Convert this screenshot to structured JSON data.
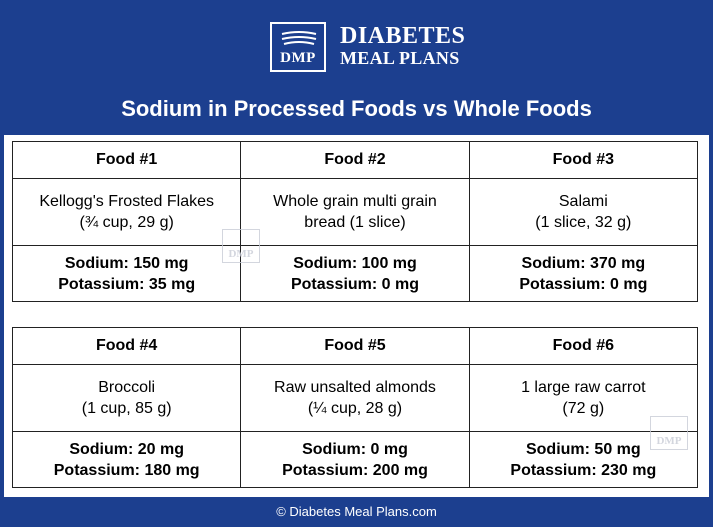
{
  "logo": {
    "badge_text": "DMP",
    "line1": "DIABETES",
    "line2": "MEAL PLANS"
  },
  "title": "Sodium in Processed Foods vs Whole Foods",
  "tables": [
    {
      "headers": [
        "Food #1",
        "Food #2",
        "Food #3"
      ],
      "descriptions": [
        [
          "Kellogg's Frosted Flakes",
          "(¾ cup, 29 g)"
        ],
        [
          "Whole grain multi grain",
          "bread (1 slice)"
        ],
        [
          "Salami",
          "(1 slice, 32 g)"
        ]
      ],
      "nutrients": [
        [
          "Sodium: 150 mg",
          "Potassium: 35 mg"
        ],
        [
          "Sodium: 100 mg",
          "Potassium: 0 mg"
        ],
        [
          "Sodium: 370 mg",
          "Potassium: 0 mg"
        ]
      ]
    },
    {
      "headers": [
        "Food #4",
        "Food #5",
        "Food #6"
      ],
      "descriptions": [
        [
          "Broccoli",
          "(1 cup, 85 g)"
        ],
        [
          "Raw unsalted almonds",
          "(¼ cup, 28 g)"
        ],
        [
          "1 large raw carrot",
          "(72 g)"
        ]
      ],
      "nutrients": [
        [
          "Sodium: 20 mg",
          "Potassium: 180 mg"
        ],
        [
          "Sodium: 0 mg",
          "Potassium: 200 mg"
        ],
        [
          "Sodium: 50 mg",
          "Potassium: 230 mg"
        ]
      ]
    }
  ],
  "watermark_text": "DMP",
  "footer": "© Diabetes Meal Plans.com"
}
